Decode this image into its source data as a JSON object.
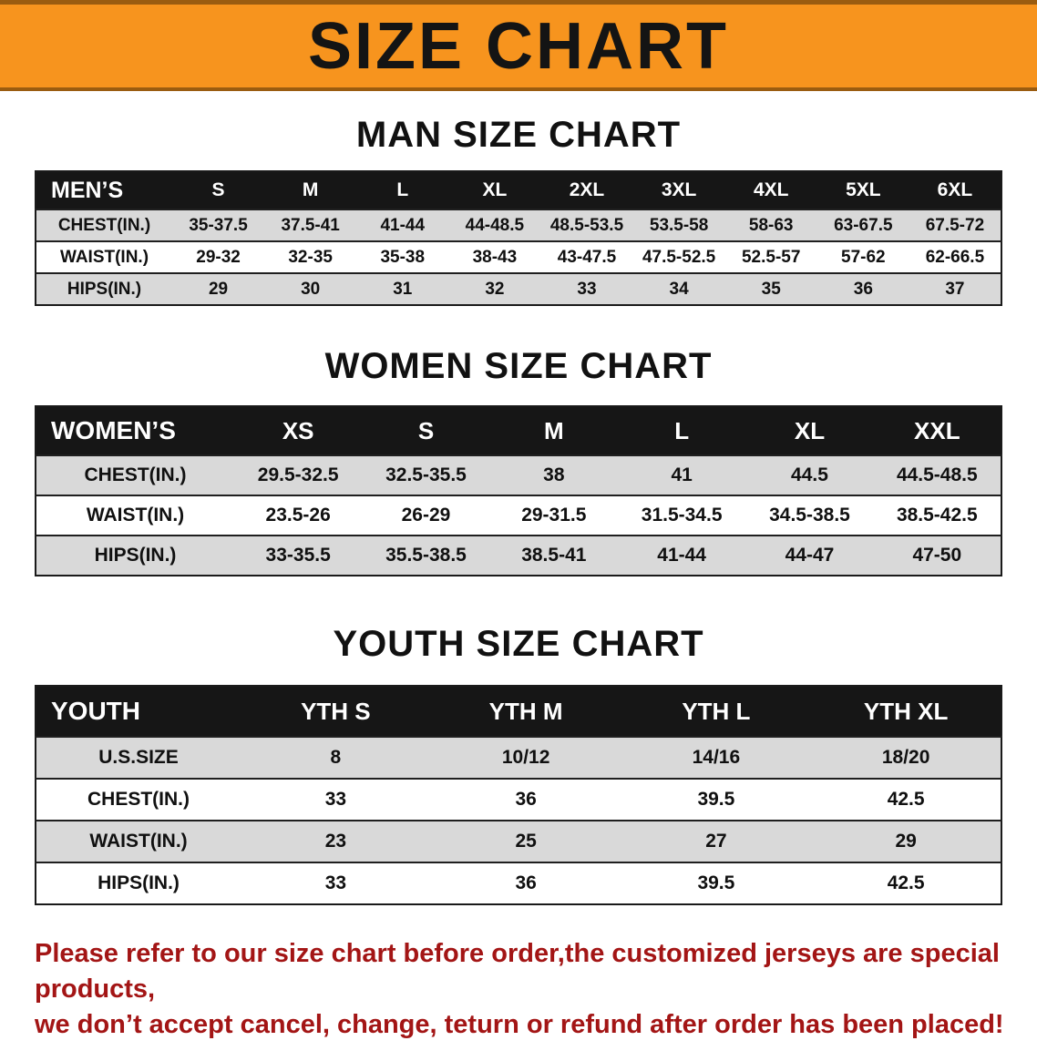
{
  "banner": {
    "title": "SIZE CHART",
    "background_color": "#F7941E"
  },
  "men": {
    "heading": "MAN SIZE CHART",
    "header": [
      "MEN’S",
      "S",
      "M",
      "L",
      "XL",
      "2XL",
      "3XL",
      "4XL",
      "5XL",
      "6XL"
    ],
    "rows": [
      {
        "label": "CHEST(IN.)",
        "values": [
          "35-37.5",
          "37.5-41",
          "41-44",
          "44-48.5",
          "48.5-53.5",
          "53.5-58",
          "58-63",
          "63-67.5",
          "67.5-72"
        ]
      },
      {
        "label": "WAIST(IN.)",
        "values": [
          "29-32",
          "32-35",
          "35-38",
          "38-43",
          "43-47.5",
          "47.5-52.5",
          "52.5-57",
          "57-62",
          "62-66.5"
        ]
      },
      {
        "label": "HIPS(IN.)",
        "values": [
          "29",
          "30",
          "31",
          "32",
          "33",
          "34",
          "35",
          "36",
          "37"
        ]
      }
    ]
  },
  "women": {
    "heading": "WOMEN SIZE CHART",
    "header": [
      "WOMEN’S",
      "XS",
      "S",
      "M",
      "L",
      "XL",
      "XXL"
    ],
    "rows": [
      {
        "label": "CHEST(IN.)",
        "values": [
          "29.5-32.5",
          "32.5-35.5",
          "38",
          "41",
          "44.5",
          "44.5-48.5"
        ]
      },
      {
        "label": "WAIST(IN.)",
        "values": [
          "23.5-26",
          "26-29",
          "29-31.5",
          "31.5-34.5",
          "34.5-38.5",
          "38.5-42.5"
        ]
      },
      {
        "label": "HIPS(IN.)",
        "values": [
          "33-35.5",
          "35.5-38.5",
          "38.5-41",
          "41-44",
          "44-47",
          "47-50"
        ]
      }
    ]
  },
  "youth": {
    "heading": "YOUTH SIZE CHART",
    "header": [
      "YOUTH",
      "YTH S",
      "YTH M",
      "YTH L",
      "YTH XL"
    ],
    "rows": [
      {
        "label": "U.S.SIZE",
        "values": [
          "8",
          "10/12",
          "14/16",
          "18/20"
        ]
      },
      {
        "label": "CHEST(IN.)",
        "values": [
          "33",
          "36",
          "39.5",
          "42.5"
        ]
      },
      {
        "label": "WAIST(IN.)",
        "values": [
          "23",
          "25",
          "27",
          "29"
        ]
      },
      {
        "label": "HIPS(IN.)",
        "values": [
          "33",
          "36",
          "39.5",
          "42.5"
        ]
      }
    ]
  },
  "note": {
    "line1": "Please refer to our size chart before order,the customized jerseys are special products,",
    "line2": "we don’t accept cancel, change, teturn or refund after order has been placed!",
    "text_color": "#A31515"
  },
  "colors": {
    "banner_orange": "#F7941E",
    "table_header_black": "#161616",
    "row_gray": "#D9D9D9",
    "note_red": "#A31515"
  }
}
